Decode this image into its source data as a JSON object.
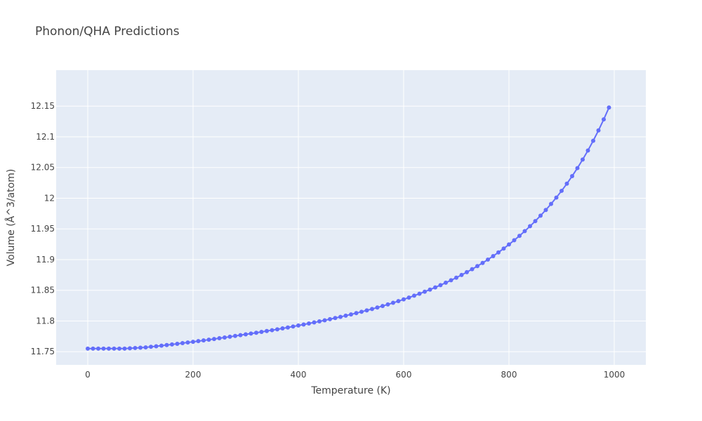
{
  "chart_data": {
    "type": "line",
    "title": "Phonon/QHA Predictions",
    "xlabel": "Temperature (K)",
    "ylabel": "Volume (Å^3/atom)",
    "xlim": [
      -60,
      1060
    ],
    "ylim": [
      11.7285,
      12.2085
    ],
    "x_ticks": [
      0,
      200,
      400,
      600,
      800,
      1000
    ],
    "x_tick_labels": [
      "0",
      "200",
      "400",
      "600",
      "800",
      "1000"
    ],
    "y_ticks": [
      11.75,
      11.8,
      11.85,
      11.9,
      11.95,
      12,
      12.05,
      12.1,
      12.15
    ],
    "y_tick_labels": [
      "11.75",
      "11.8",
      "11.85",
      "11.9",
      "11.95",
      "12",
      "12.05",
      "12.1",
      "12.15"
    ],
    "grid": true,
    "legend": "none",
    "colors": {
      "plot_background": "#e5ecf6",
      "grid": "#ffffff",
      "series": "#636efa",
      "text": "#444444"
    },
    "series": [
      {
        "mode": "lines+markers",
        "x": [
          0,
          10,
          20,
          30,
          40,
          50,
          60,
          70,
          80,
          90,
          100,
          110,
          120,
          130,
          140,
          150,
          160,
          170,
          180,
          190,
          200,
          210,
          220,
          230,
          240,
          250,
          260,
          270,
          280,
          290,
          300,
          310,
          320,
          330,
          340,
          350,
          360,
          370,
          380,
          390,
          400,
          410,
          420,
          430,
          440,
          450,
          460,
          470,
          480,
          490,
          500,
          510,
          520,
          530,
          540,
          550,
          560,
          570,
          580,
          590,
          600,
          610,
          620,
          630,
          640,
          650,
          660,
          670,
          680,
          690,
          700,
          710,
          720,
          730,
          740,
          750,
          760,
          770,
          780,
          790,
          800,
          810,
          820,
          830,
          840,
          850,
          860,
          870,
          880,
          890,
          900,
          910,
          920,
          930,
          940,
          950,
          960,
          970,
          980,
          990
        ],
        "y": [
          11.755,
          11.755,
          11.755,
          11.755,
          11.755,
          11.755,
          11.755,
          11.755,
          11.7555,
          11.756,
          11.7565,
          11.757,
          11.758,
          11.7588,
          11.7598,
          11.7608,
          11.7618,
          11.7628,
          11.7639,
          11.765,
          11.7661,
          11.7672,
          11.7683,
          11.7695,
          11.7707,
          11.7719,
          11.7731,
          11.7743,
          11.7756,
          11.7769,
          11.7782,
          11.7795,
          11.7808,
          11.7822,
          11.7836,
          11.785,
          11.7864,
          11.7879,
          11.7894,
          11.791,
          11.7926,
          11.7942,
          11.7959,
          11.7976,
          11.7993,
          11.8011,
          11.8029,
          11.8048,
          11.8067,
          11.8087,
          11.8107,
          11.8128,
          11.815,
          11.8172,
          11.8195,
          11.8219,
          11.8244,
          11.8269,
          11.8296,
          11.8323,
          11.8352,
          11.8381,
          11.8412,
          11.8444,
          11.8477,
          11.8511,
          11.8547,
          11.8584,
          11.8623,
          11.8663,
          11.8705,
          11.8749,
          11.8795,
          11.8843,
          11.8893,
          11.8945,
          11.9,
          11.9057,
          11.9117,
          11.918,
          11.9246,
          11.9315,
          11.9387,
          11.9463,
          11.9543,
          11.9627,
          11.9715,
          11.9808,
          11.9906,
          12.001,
          12.012,
          12.0236,
          12.0359,
          12.049,
          12.0629,
          12.0777,
          12.0935,
          12.1103,
          12.1283,
          12.1476
        ]
      }
    ]
  }
}
